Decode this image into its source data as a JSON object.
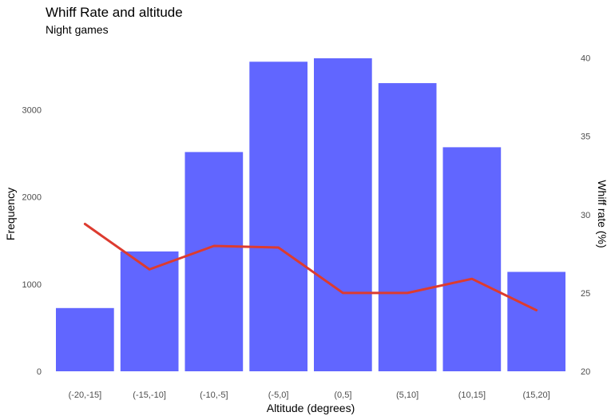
{
  "chart_data": {
    "type": "bar",
    "title": "Whiff Rate and altitude",
    "subtitle": "Night games",
    "xlabel": "Altitude (degrees)",
    "ylabel": "Frequency",
    "y2label": "Whiff rate (%)",
    "categories": [
      "(-20,-15]",
      "(-15,-10]",
      "(-10,-5]",
      "(-5,0]",
      "(0,5]",
      "(5,10]",
      "(10,15]",
      "(15,20]"
    ],
    "series": [
      {
        "type": "bar",
        "axis": "left",
        "color": "#6166ff",
        "values": [
          725,
          1375,
          2515,
          3550,
          3590,
          3305,
          2570,
          1140
        ]
      },
      {
        "type": "line",
        "axis": "right",
        "color": "#dd3b2f",
        "values": [
          29.4,
          26.5,
          28.0,
          27.9,
          25.0,
          25.0,
          25.9,
          23.9
        ]
      }
    ],
    "ylim": [
      0,
      3600
    ],
    "yticks": [
      0,
      1000,
      2000,
      3000
    ],
    "y2lim": [
      20,
      40
    ],
    "y2ticks": [
      20,
      25,
      30,
      35,
      40
    ],
    "grid": false,
    "legend": "none"
  }
}
